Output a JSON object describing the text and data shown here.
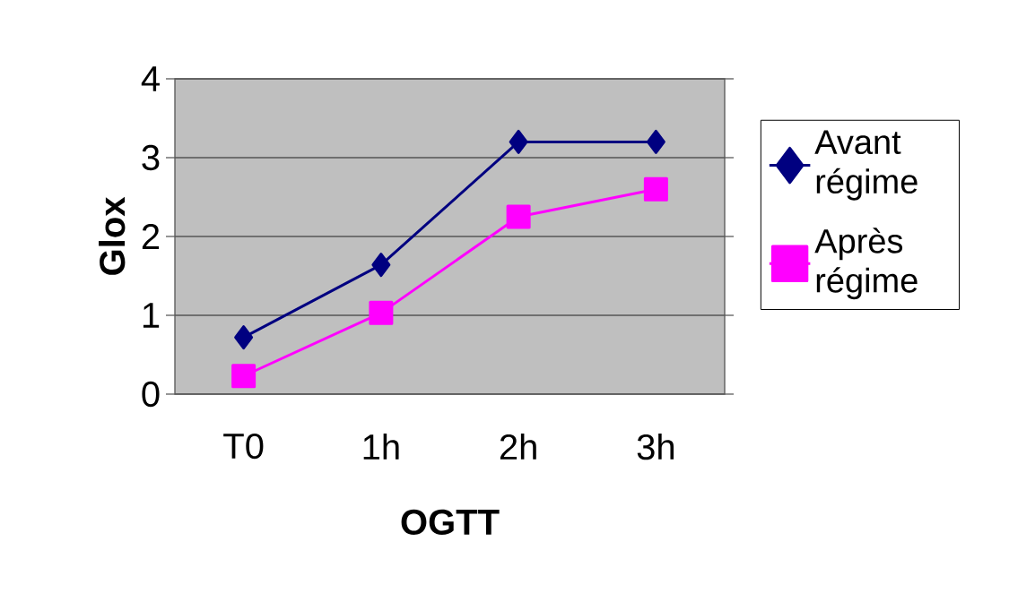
{
  "chart_data": {
    "type": "line",
    "xlabel": "OGTT",
    "ylabel": "Glox",
    "categories": [
      "T0",
      "1h",
      "2h",
      "3h"
    ],
    "series": [
      {
        "name": "Avant régime",
        "color": "#000080",
        "marker": "diamond",
        "values": [
          0.72,
          1.64,
          3.2,
          3.2
        ]
      },
      {
        "name": "Après régime",
        "color": "#ff00ff",
        "marker": "square",
        "values": [
          0.23,
          1.03,
          2.25,
          2.6
        ]
      }
    ],
    "ylim": [
      0,
      4
    ],
    "yticks": [
      0,
      1,
      2,
      3,
      4
    ],
    "grid": "y",
    "legend": "right"
  }
}
